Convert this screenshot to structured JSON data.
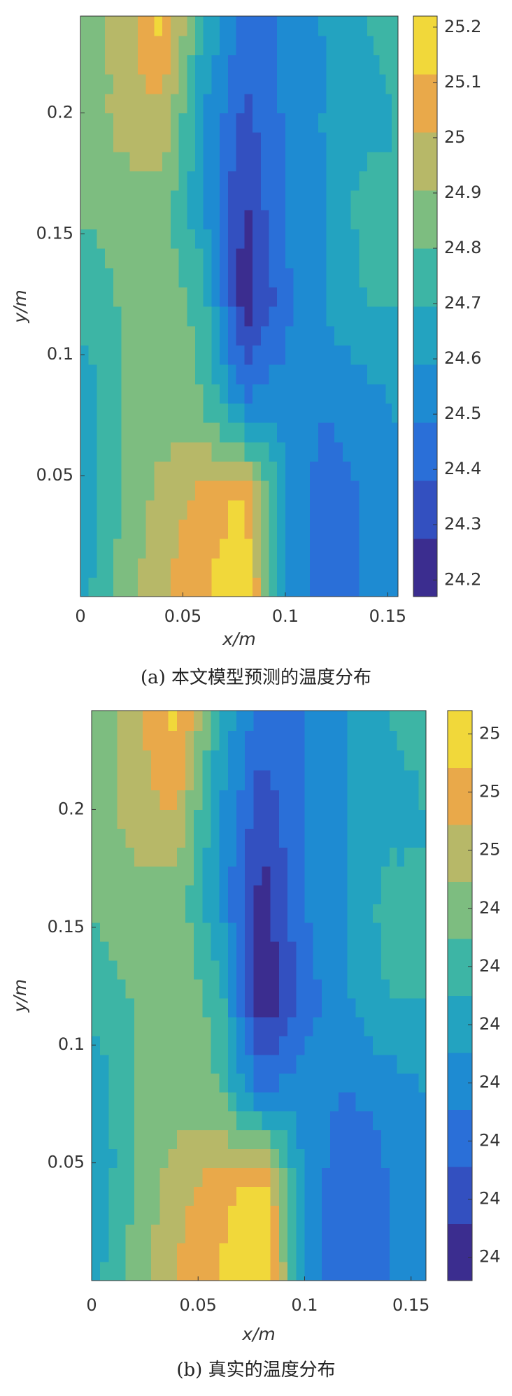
{
  "chart_data": [
    {
      "type": "contour",
      "caption": "(a) 本文模型预测的温度分布",
      "xlabel": "x/m",
      "ylabel": "y/m",
      "x": [
        0,
        0.02,
        0.04,
        0.06,
        0.08,
        0.1,
        0.12,
        0.14,
        0.155
      ],
      "y": [
        0,
        0.04,
        0.08,
        0.12,
        0.16,
        0.2,
        0.24
      ],
      "z": [
        [
          24.65,
          24.85,
          25.0,
          25.1,
          25.2,
          24.6,
          24.4,
          24.5,
          24.55
        ],
        [
          24.6,
          24.8,
          24.95,
          25.05,
          25.15,
          24.6,
          24.4,
          24.5,
          24.55
        ],
        [
          24.6,
          24.8,
          24.85,
          24.8,
          24.5,
          24.55,
          24.5,
          24.55,
          24.6
        ],
        [
          24.75,
          24.8,
          24.9,
          24.75,
          24.2,
          24.45,
          24.6,
          24.7,
          24.7
        ],
        [
          24.8,
          24.85,
          24.85,
          24.6,
          24.25,
          24.5,
          24.6,
          24.75,
          24.7
        ],
        [
          24.8,
          24.95,
          25.0,
          24.6,
          24.35,
          24.5,
          24.6,
          24.65,
          24.7
        ],
        [
          24.8,
          24.95,
          25.15,
          24.7,
          24.45,
          24.5,
          24.6,
          24.7,
          24.75
        ]
      ],
      "xlim": [
        0,
        0.155
      ],
      "ylim": [
        0,
        0.24
      ],
      "xticks": [
        0,
        0.05,
        0.1,
        0.15
      ],
      "yticks": [
        0.05,
        0.1,
        0.15,
        0.2
      ],
      "clim": [
        24.17,
        25.22
      ],
      "cticks": [
        24.2,
        24.3,
        24.4,
        24.5,
        24.6,
        24.7,
        24.8,
        24.9,
        25,
        25.1,
        25.2
      ],
      "colormap": [
        "#3b2d8f",
        "#3350c0",
        "#2a6fd8",
        "#1e8bd2",
        "#23a3c0",
        "#3db5a5",
        "#7dbd80",
        "#b7b868",
        "#e9a94a",
        "#f1d83a"
      ]
    },
    {
      "type": "contour",
      "caption": "(b) 真实的温度分布",
      "xlabel": "x/m",
      "ylabel": "y/m",
      "x": [
        0,
        0.02,
        0.04,
        0.06,
        0.08,
        0.1,
        0.12,
        0.14,
        0.157
      ],
      "y": [
        0,
        0.04,
        0.08,
        0.12,
        0.16,
        0.2,
        0.242
      ],
      "z": [
        [
          24.2,
          24.4,
          24.55,
          24.65,
          24.75,
          24.15,
          23.95,
          24.05,
          24.1
        ],
        [
          24.15,
          24.35,
          24.5,
          24.6,
          24.7,
          24.15,
          23.95,
          24.05,
          24.1
        ],
        [
          24.15,
          24.35,
          24.4,
          24.35,
          24.05,
          24.1,
          24.05,
          24.1,
          24.15
        ],
        [
          24.3,
          24.35,
          24.45,
          24.3,
          23.75,
          24.0,
          24.15,
          24.25,
          24.25
        ],
        [
          24.35,
          24.4,
          24.4,
          24.15,
          23.8,
          24.05,
          24.15,
          24.3,
          24.25
        ],
        [
          24.35,
          24.5,
          24.55,
          24.15,
          23.9,
          24.05,
          24.15,
          24.2,
          24.25
        ],
        [
          24.35,
          24.5,
          24.7,
          24.25,
          24.0,
          24.05,
          24.15,
          24.25,
          24.3
        ]
      ],
      "xlim": [
        0,
        0.157
      ],
      "ylim": [
        0,
        0.242
      ],
      "xticks": [
        0,
        0.05,
        0.1,
        0.15
      ],
      "yticks": [
        0.05,
        0.1,
        0.15,
        0.2
      ],
      "clim": [
        23.76,
        24.74
      ],
      "cticks": [
        {
          "value": 24.7,
          "label": "25"
        },
        {
          "value": 24.6,
          "label": "25"
        },
        {
          "value": 24.5,
          "label": "25"
        },
        {
          "value": 24.4,
          "label": "24"
        },
        {
          "value": 24.3,
          "label": "24"
        },
        {
          "value": 24.2,
          "label": "24"
        },
        {
          "value": 24.1,
          "label": "24"
        },
        {
          "value": 24.0,
          "label": "24"
        },
        {
          "value": 23.9,
          "label": "24"
        },
        {
          "value": 23.8,
          "label": "24"
        }
      ],
      "colormap": [
        "#3b2d8f",
        "#3350c0",
        "#2a6fd8",
        "#1e8bd2",
        "#23a3c0",
        "#3db5a5",
        "#7dbd80",
        "#b7b868",
        "#e9a94a",
        "#f1d83a"
      ]
    }
  ]
}
